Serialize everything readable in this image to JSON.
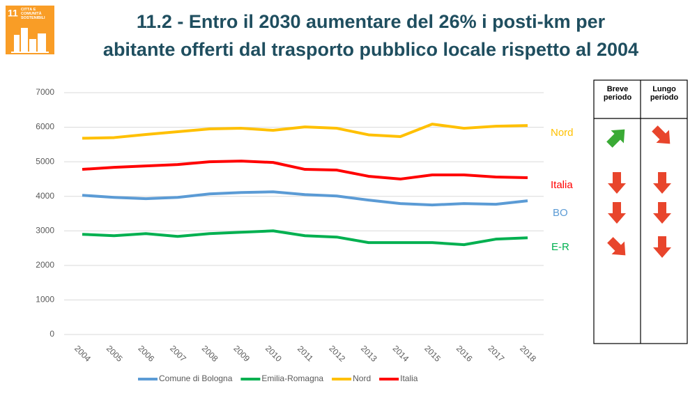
{
  "logo": {
    "number": "11",
    "caption": "CITTÀ E COMUNITÀ SOSTENIBILI"
  },
  "chart_data": {
    "type": "line",
    "title": [
      "11.2 - Entro il 2030 aumentare del 26% i posti-km per",
      "abitante offerti dal trasporto pubblico locale rispetto al 2004"
    ],
    "categories": [
      "2004",
      "2005",
      "2006",
      "2007",
      "2008",
      "2009",
      "2010",
      "2011",
      "2012",
      "2013",
      "2014",
      "2015",
      "2016",
      "2017",
      "2018"
    ],
    "series": [
      {
        "name": "Comune di Bologna",
        "color": "#5b9bd5",
        "values": [
          4030,
          3970,
          3930,
          3970,
          4070,
          4110,
          4130,
          4050,
          4010,
          3890,
          3790,
          3750,
          3790,
          3770,
          3870
        ]
      },
      {
        "name": "Emilia-Romagna",
        "color": "#00b050",
        "values": [
          2900,
          2860,
          2920,
          2840,
          2920,
          2960,
          3000,
          2860,
          2820,
          2660,
          2660,
          2660,
          2600,
          2760,
          2800
        ]
      },
      {
        "name": "Nord",
        "color": "#ffc000",
        "values": [
          5680,
          5700,
          5790,
          5870,
          5950,
          5970,
          5910,
          6010,
          5970,
          5780,
          5730,
          6090,
          5970,
          6030,
          6050
        ]
      },
      {
        "name": "Italia",
        "color": "#ff0000",
        "values": [
          4780,
          4840,
          4880,
          4920,
          5000,
          5020,
          4980,
          4780,
          4760,
          4580,
          4500,
          4620,
          4620,
          4560,
          4540
        ]
      }
    ],
    "ylim": [
      0,
      7000
    ],
    "yticks": [
      0,
      1000,
      2000,
      3000,
      4000,
      5000,
      6000,
      7000
    ],
    "grid": true,
    "legend": "bottom",
    "end_labels": [
      {
        "text": "Nord",
        "color": "#ffc000"
      },
      {
        "text": "Italia",
        "color": "#ff0000"
      },
      {
        "text": "BO",
        "color": "#5b9bd5"
      },
      {
        "text": "E-R",
        "color": "#00b050"
      }
    ]
  },
  "table": {
    "headers": [
      "Breve periodo",
      "Lungo periodo"
    ]
  }
}
